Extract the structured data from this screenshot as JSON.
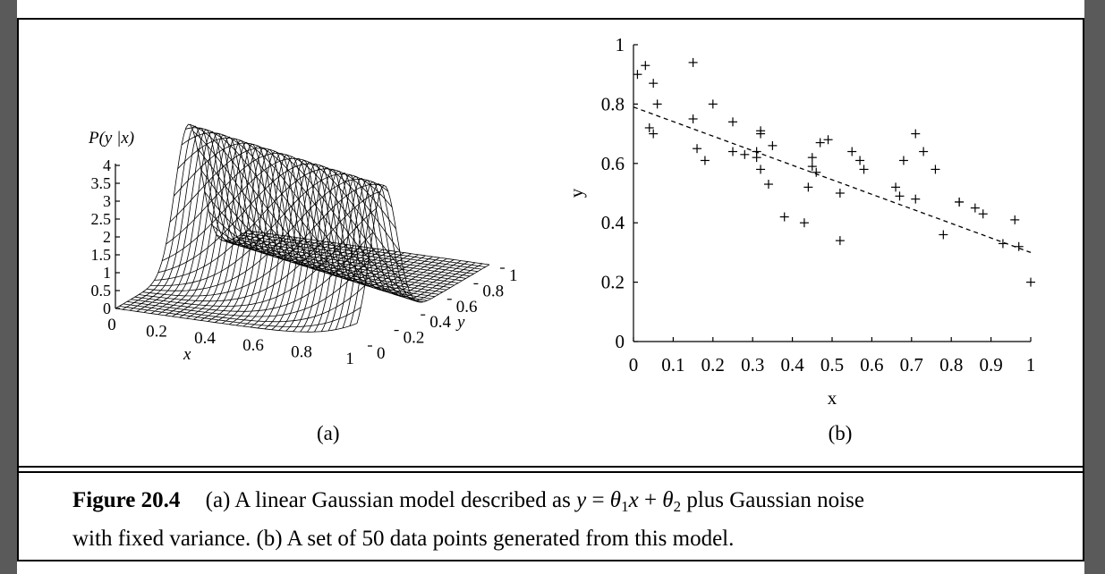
{
  "figure": {
    "number": "Figure 20.4",
    "caption_part1": "(a) A linear Gaussian model described as",
    "caption_math": {
      "y": "y",
      "eq": " = ",
      "theta": "θ",
      "sub1": "1",
      "x": "x",
      "plus": " + ",
      "sub2": "2"
    },
    "caption_part2": "plus Gaussian noise",
    "caption_line2": "with fixed variance. (b) A set of 50 data points generated from this model."
  },
  "panel_a": {
    "label": "(a)",
    "z_label": "P(y |x)",
    "x_label": "x",
    "y_label": "y",
    "z_ticks": [
      "4",
      "3.5",
      "3",
      "2.5",
      "2",
      "1.5",
      "1",
      "0.5",
      "0"
    ],
    "x_ticks": [
      "0",
      "0.2",
      "0.4",
      "0.6",
      "0.8",
      "1"
    ],
    "y_ticks": [
      "0",
      "0.2",
      "0.4",
      "0.6",
      "0.8",
      "1"
    ]
  },
  "panel_b": {
    "label": "(b)"
  },
  "chart_data": [
    {
      "type": "surface",
      "title": "",
      "xlabel": "x",
      "ylabel": "y",
      "zlabel": "P(y |x)",
      "xlim": [
        0,
        1
      ],
      "ylim": [
        0,
        1
      ],
      "zlim": [
        0,
        4
      ]
    },
    {
      "type": "scatter",
      "title": "",
      "xlabel": "x",
      "ylabel": "y",
      "xlim": [
        0,
        1
      ],
      "ylim": [
        0,
        1
      ],
      "x_ticks": [
        "0",
        "0.1",
        "0.2",
        "0.3",
        "0.4",
        "0.5",
        "0.6",
        "0.7",
        "0.8",
        "0.9",
        "1"
      ],
      "y_ticks": [
        "0",
        "0.2",
        "0.4",
        "0.6",
        "0.8",
        "1"
      ],
      "points": [
        [
          0.01,
          0.9
        ],
        [
          0.03,
          0.93
        ],
        [
          0.05,
          0.87
        ],
        [
          0.06,
          0.8
        ],
        [
          0.04,
          0.72
        ],
        [
          0.05,
          0.7
        ],
        [
          0.15,
          0.94
        ],
        [
          0.15,
          0.75
        ],
        [
          0.16,
          0.65
        ],
        [
          0.18,
          0.61
        ],
        [
          0.2,
          0.8
        ],
        [
          0.25,
          0.74
        ],
        [
          0.25,
          0.64
        ],
        [
          0.28,
          0.63
        ],
        [
          0.31,
          0.64
        ],
        [
          0.32,
          0.71
        ],
        [
          0.32,
          0.7
        ],
        [
          0.31,
          0.62
        ],
        [
          0.32,
          0.58
        ],
        [
          0.34,
          0.53
        ],
        [
          0.35,
          0.66
        ],
        [
          0.38,
          0.42
        ],
        [
          0.43,
          0.4
        ],
        [
          0.44,
          0.52
        ],
        [
          0.45,
          0.62
        ],
        [
          0.45,
          0.59
        ],
        [
          0.46,
          0.57
        ],
        [
          0.47,
          0.67
        ],
        [
          0.49,
          0.68
        ],
        [
          0.52,
          0.5
        ],
        [
          0.52,
          0.34
        ],
        [
          0.55,
          0.64
        ],
        [
          0.57,
          0.61
        ],
        [
          0.58,
          0.58
        ],
        [
          0.66,
          0.52
        ],
        [
          0.67,
          0.49
        ],
        [
          0.68,
          0.61
        ],
        [
          0.71,
          0.7
        ],
        [
          0.71,
          0.48
        ],
        [
          0.73,
          0.64
        ],
        [
          0.76,
          0.58
        ],
        [
          0.78,
          0.36
        ],
        [
          0.82,
          0.47
        ],
        [
          0.82,
          0.47
        ],
        [
          0.86,
          0.45
        ],
        [
          0.88,
          0.43
        ],
        [
          0.96,
          0.41
        ],
        [
          0.97,
          0.32
        ],
        [
          1.0,
          0.2
        ],
        [
          0.93,
          0.33
        ]
      ],
      "fit_line": {
        "x": [
          0,
          1
        ],
        "y": [
          0.79,
          0.3
        ],
        "style": "dashed"
      }
    }
  ]
}
